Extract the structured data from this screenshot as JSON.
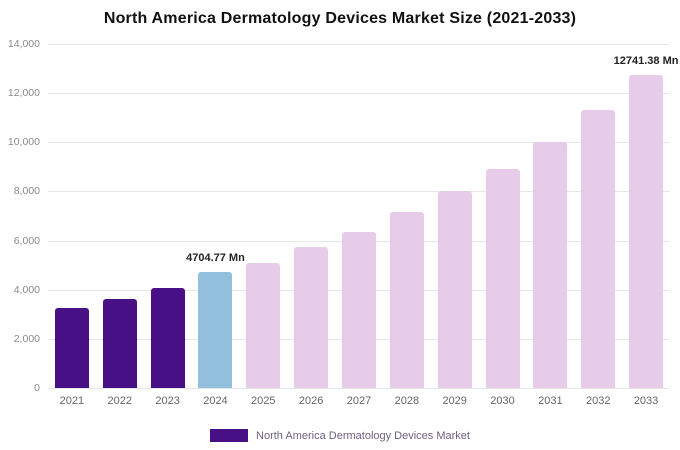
{
  "title": "North America Dermatology Devices Market Size (2021-2033)",
  "legend": {
    "label": "North America Dermatology Devices Market",
    "swatch_color": "#471085"
  },
  "chart_data": {
    "type": "bar",
    "title": "North America Dermatology Devices Market Size (2021-2033)",
    "categories": [
      "2021",
      "2022",
      "2023",
      "2024",
      "2025",
      "2026",
      "2027",
      "2028",
      "2029",
      "2030",
      "2031",
      "2032",
      "2033"
    ],
    "values": [
      3250,
      3620,
      4080,
      4704.77,
      5100,
      5720,
      6350,
      7150,
      8000,
      8900,
      10000,
      11300,
      12741.38
    ],
    "unit": "Mn",
    "bar_colors": [
      "#471085",
      "#471085",
      "#471085",
      "#92c0dc",
      "#e7cce9",
      "#e7cce9",
      "#e7cce9",
      "#e7cce9",
      "#e7cce9",
      "#e7cce9",
      "#e7cce9",
      "#e7cce9",
      "#e7cce9"
    ],
    "annotations": [
      {
        "category": "2024",
        "text": "4704.77 Mn"
      },
      {
        "category": "2033",
        "text": "12741.38 Mn"
      }
    ],
    "xlabel": "",
    "ylabel": "",
    "ylim": [
      0,
      14000
    ],
    "ytick_interval": 2000,
    "ytick_labels": [
      "0",
      "2,000",
      "4,000",
      "6,000",
      "8,000",
      "10,000",
      "12,000",
      "14,000"
    ],
    "grid": true,
    "legend_position": "bottom",
    "color_meaning": {
      "historical_2021_2023": "#471085",
      "base_year_2024": "#92c0dc",
      "forecast_2025_2033": "#e7cce9"
    }
  }
}
